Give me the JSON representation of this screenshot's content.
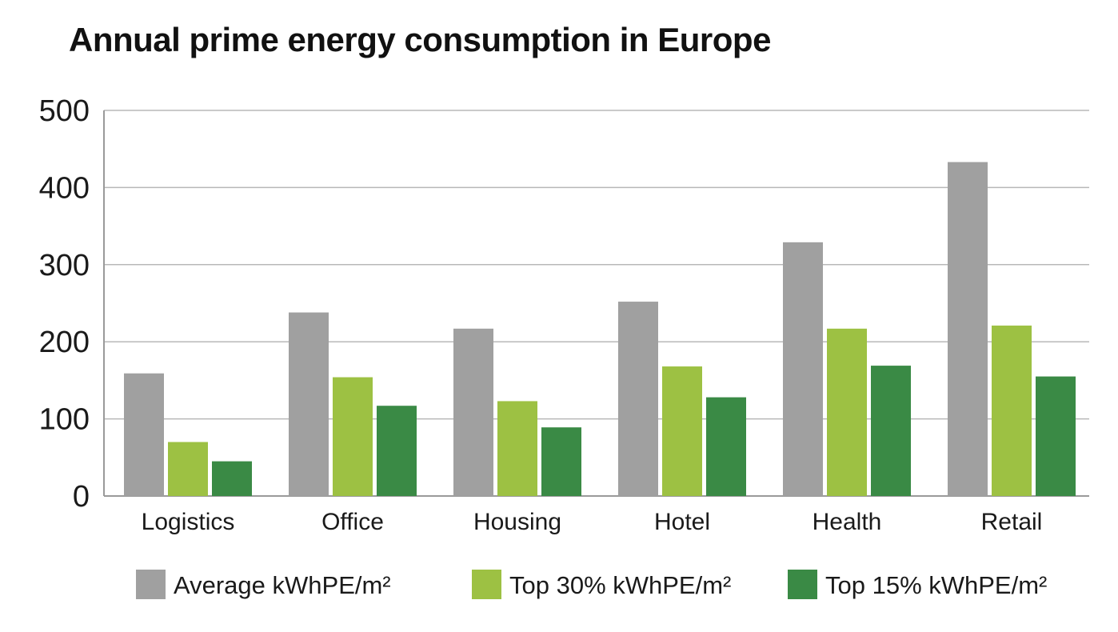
{
  "chart_data": {
    "type": "bar",
    "title": "Annual prime energy consumption in Europe",
    "xlabel": "",
    "ylabel": "",
    "ylim": [
      0,
      500
    ],
    "yticks": [
      "0",
      "100",
      "200",
      "300",
      "400",
      "500"
    ],
    "grid": true,
    "legend_position": "bottom",
    "categories": [
      "Logistics",
      "Office",
      "Housing",
      "Hotel",
      "Health",
      "Retail"
    ],
    "series": [
      {
        "name": "Average kWhPE/m²",
        "color": "#a0a0a0",
        "values": [
          159,
          238,
          217,
          252,
          329,
          433
        ]
      },
      {
        "name": "Top 30% kWhPE/m²",
        "color": "#9dc143",
        "values": [
          70,
          154,
          123,
          168,
          217,
          221
        ]
      },
      {
        "name": "Top 15% kWhPE/m²",
        "color": "#3a8a45",
        "values": [
          45,
          117,
          89,
          128,
          169,
          155
        ]
      }
    ]
  }
}
